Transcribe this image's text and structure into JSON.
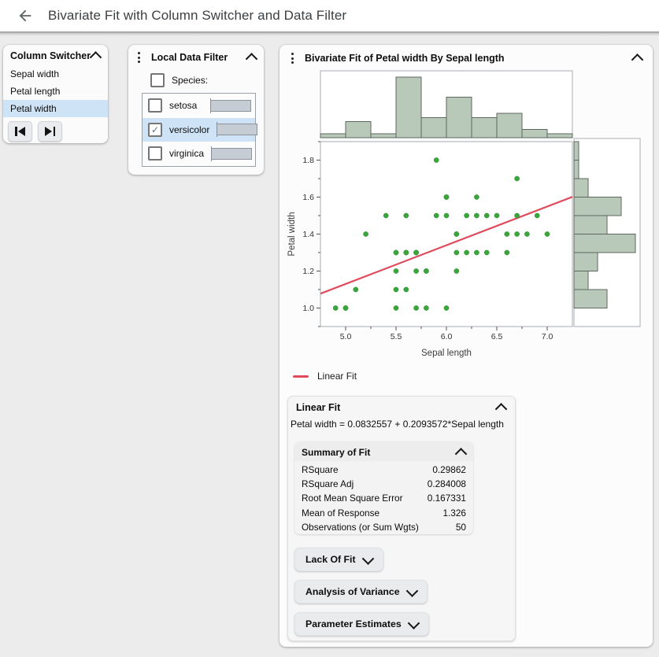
{
  "header": {
    "title": "Bivariate Fit with Column Switcher and Data Filter"
  },
  "icons": {
    "back": "arrow-left",
    "panel_collapse": "chevron-up",
    "section_expand": "chevron-down",
    "menu": "vertical-dots",
    "previous": "step-backward",
    "next": "step-forward"
  },
  "colors": {
    "selection_blue": "#cee3f6",
    "histogram_fill": "#b9c9b9",
    "histogram_stroke": "#5e675d",
    "point_green": "#3aa53a",
    "fit_line_red": "#e04a5c"
  },
  "column_switcher": {
    "title": "Column Switcher",
    "items": [
      {
        "label": "Sepal width",
        "selected": false
      },
      {
        "label": "Petal length",
        "selected": false
      },
      {
        "label": "Petal width",
        "selected": true
      }
    ]
  },
  "data_filter": {
    "title": "Local Data Filter",
    "field_label": "Species:",
    "field_checked": false,
    "levels": [
      {
        "label": "setosa",
        "checked": false,
        "selected": false
      },
      {
        "label": "versicolor",
        "checked": true,
        "selected": true
      },
      {
        "label": "virginica",
        "checked": false,
        "selected": false
      }
    ]
  },
  "bivariate": {
    "title": "Bivariate Fit of Petal width By Sepal length",
    "legend_label": "Linear Fit",
    "linear_fit": {
      "title": "Linear Fit",
      "equation": "Petal width = 0.0832557 + 0.2093572*Sepal length",
      "summary": {
        "title": "Summary of Fit",
        "rows": [
          {
            "label": "RSquare",
            "value": "0.29862"
          },
          {
            "label": "RSquare Adj",
            "value": "0.284008"
          },
          {
            "label": "Root Mean Square Error",
            "value": "0.167331"
          },
          {
            "label": "Mean of Response",
            "value": "1.326"
          },
          {
            "label": "Observations (or Sum Wgts)",
            "value": "50"
          }
        ]
      },
      "collapsed_sections": [
        "Lack Of Fit",
        "Analysis of Variance",
        "Parameter Estimates"
      ]
    }
  },
  "chart_data": {
    "type": "scatter",
    "title": "Bivariate Fit of Petal width By Sepal length",
    "xlabel": "Sepal length",
    "ylabel": "Petal width",
    "xlim": [
      4.75,
      7.25
    ],
    "ylim": [
      0.9,
      1.9
    ],
    "x_ticks": [
      5.0,
      5.5,
      6.0,
      6.5,
      7.0
    ],
    "x_minor_ticks": [
      5.25,
      5.75,
      6.25,
      6.75
    ],
    "y_ticks": [
      1.0,
      1.2,
      1.4,
      1.6,
      1.8
    ],
    "y_minor_ticks": [
      0.9,
      1.1,
      1.3,
      1.5,
      1.7,
      1.9
    ],
    "grid": false,
    "legend_position": "below",
    "point_color": "#3aa53a",
    "points": [
      [
        7.0,
        1.4
      ],
      [
        6.4,
        1.5
      ],
      [
        6.9,
        1.5
      ],
      [
        5.5,
        1.3
      ],
      [
        6.5,
        1.5
      ],
      [
        5.7,
        1.3
      ],
      [
        6.3,
        1.6
      ],
      [
        4.9,
        1.0
      ],
      [
        6.6,
        1.3
      ],
      [
        5.2,
        1.4
      ],
      [
        5.0,
        1.0
      ],
      [
        5.9,
        1.5
      ],
      [
        6.0,
        1.0
      ],
      [
        6.1,
        1.4
      ],
      [
        5.6,
        1.3
      ],
      [
        6.7,
        1.4
      ],
      [
        5.6,
        1.5
      ],
      [
        5.8,
        1.0
      ],
      [
        6.2,
        1.5
      ],
      [
        5.6,
        1.1
      ],
      [
        5.9,
        1.8
      ],
      [
        6.1,
        1.3
      ],
      [
        6.3,
        1.5
      ],
      [
        6.1,
        1.2
      ],
      [
        6.4,
        1.3
      ],
      [
        6.6,
        1.4
      ],
      [
        6.8,
        1.4
      ],
      [
        6.7,
        1.7
      ],
      [
        6.0,
        1.5
      ],
      [
        5.7,
        1.0
      ],
      [
        5.5,
        1.1
      ],
      [
        5.5,
        1.0
      ],
      [
        5.8,
        1.2
      ],
      [
        6.0,
        1.6
      ],
      [
        5.4,
        1.5
      ],
      [
        6.0,
        1.6
      ],
      [
        6.7,
        1.5
      ],
      [
        6.3,
        1.3
      ],
      [
        5.6,
        1.3
      ],
      [
        5.5,
        1.3
      ],
      [
        5.5,
        1.2
      ],
      [
        6.1,
        1.4
      ],
      [
        5.8,
        1.2
      ],
      [
        5.0,
        1.0
      ],
      [
        5.6,
        1.3
      ],
      [
        5.7,
        1.2
      ],
      [
        5.7,
        1.3
      ],
      [
        6.2,
        1.3
      ],
      [
        5.1,
        1.1
      ],
      [
        5.7,
        1.3
      ]
    ],
    "fit_line": {
      "label": "Linear Fit",
      "intercept": 0.0832557,
      "slope": 0.2093572,
      "color": "#e04a5c"
    },
    "marginal_histograms": {
      "fill": "#b9c9b9",
      "stroke": "#5e675d",
      "top": {
        "variable": "Sepal length",
        "bin_start": 4.75,
        "bin_width": 0.25,
        "counts": [
          1,
          4,
          1,
          15,
          5,
          10,
          5,
          6,
          2,
          1
        ]
      },
      "right": {
        "variable": "Petal width",
        "bin_start": 1.0,
        "bin_width": 0.1,
        "counts": [
          7,
          3,
          5,
          13,
          7,
          10,
          3,
          1,
          1
        ]
      }
    }
  }
}
